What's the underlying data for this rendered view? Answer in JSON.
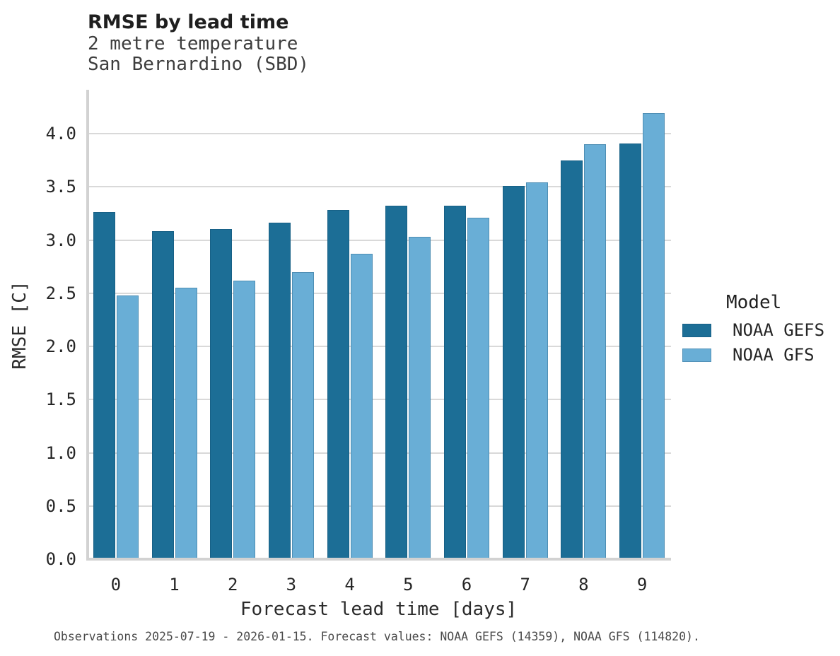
{
  "header": {
    "title": "RMSE by lead time",
    "subtitle_line1": "2 metre temperature",
    "subtitle_line2": "San Bernardino (SBD)"
  },
  "chart_data": {
    "type": "bar",
    "title": "RMSE by lead time",
    "subtitle": [
      "2 metre temperature",
      "San Bernardino (SBD)"
    ],
    "categories": [
      0,
      1,
      2,
      3,
      4,
      5,
      6,
      7,
      8,
      9
    ],
    "series": [
      {
        "name": "NOAA GEFS",
        "color": "#1c6e96",
        "values": [
          3.26,
          3.08,
          3.1,
          3.16,
          3.28,
          3.32,
          3.32,
          3.51,
          3.75,
          3.91
        ]
      },
      {
        "name": "NOAA GFS",
        "color": "#69aed6",
        "values": [
          2.48,
          2.55,
          2.62,
          2.7,
          2.87,
          3.03,
          3.21,
          3.54,
          3.9,
          4.19
        ]
      }
    ],
    "xlabel": "Forecast lead time [days]",
    "ylabel": "RMSE [C]",
    "ylim": [
      0.0,
      4.4
    ],
    "yticks": [
      0.0,
      0.5,
      1.0,
      1.5,
      2.0,
      2.5,
      3.0,
      3.5,
      4.0
    ],
    "grid": true,
    "legend_title": "Model",
    "legend_position": "right",
    "colors": {
      "gridline": "#d9d9d9",
      "axis_line": "#d2d2d2",
      "background": "#ffffff"
    }
  },
  "footer": {
    "text": "Observations 2025-07-19 - 2026-01-15. Forecast values: NOAA GEFS (14359), NOAA GFS (114820)."
  }
}
